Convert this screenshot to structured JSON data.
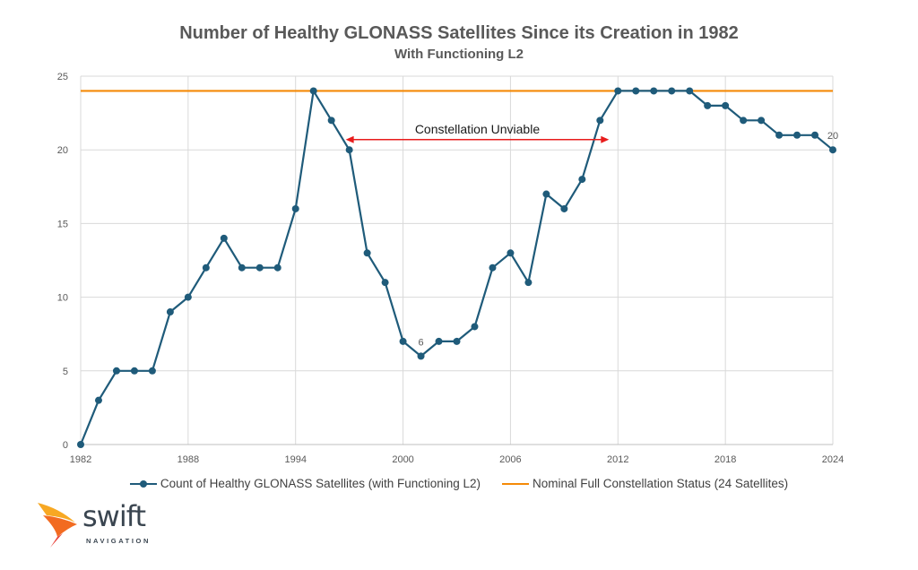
{
  "chart_data": {
    "type": "line",
    "title": "Number of Healthy GLONASS Satellites Since its Creation in 1982",
    "subtitle": "With Functioning L2",
    "xlabel": "",
    "ylabel": "",
    "xlim": [
      1982,
      2024
    ],
    "ylim": [
      0,
      25
    ],
    "x_ticks": [
      "1982",
      "1988",
      "1994",
      "2000",
      "2006",
      "2012",
      "2018",
      "2024"
    ],
    "y_ticks": [
      "0",
      "5",
      "10",
      "15",
      "20",
      "25"
    ],
    "grid": true,
    "legend_position": "bottom",
    "x": [
      1982,
      1983,
      1984,
      1985,
      1986,
      1987,
      1988,
      1989,
      1990,
      1991,
      1992,
      1993,
      1994,
      1995,
      1996,
      1997,
      1998,
      1999,
      2000,
      2001,
      2002,
      2003,
      2004,
      2005,
      2006,
      2007,
      2008,
      2009,
      2010,
      2011,
      2012,
      2013,
      2014,
      2015,
      2016,
      2017,
      2018,
      2019,
      2020,
      2021,
      2022,
      2023,
      2024
    ],
    "series": [
      {
        "name": "Count of Healthy GLONASS Satellites (with Functioning L2)",
        "color": "#1f5b7a",
        "values": [
          0,
          3,
          5,
          5,
          5,
          9,
          10,
          12,
          14,
          12,
          12,
          12,
          16,
          24,
          22,
          20,
          13,
          11,
          7,
          6,
          7,
          7,
          8,
          12,
          13,
          11,
          17,
          16,
          18,
          22,
          24,
          24,
          24,
          24,
          24,
          23,
          23,
          22,
          22,
          21,
          21,
          21,
          20
        ]
      },
      {
        "name": "Nominal Full Constellation Status (24 Satellites)",
        "color": "#f58a07",
        "constant": 24
      }
    ],
    "data_labels": [
      {
        "x": 2001,
        "y": 6,
        "text": "6"
      },
      {
        "x": 2024,
        "y": 20,
        "text": "20"
      }
    ],
    "annotations": [
      {
        "text": "Constellation Unviable",
        "type": "double-arrow",
        "from_x": 1997.5,
        "to_x": 2010.8,
        "y": 21,
        "color": "#e81c1c"
      }
    ]
  },
  "logo": {
    "name": "swift",
    "sub": "NAVIGATION"
  }
}
